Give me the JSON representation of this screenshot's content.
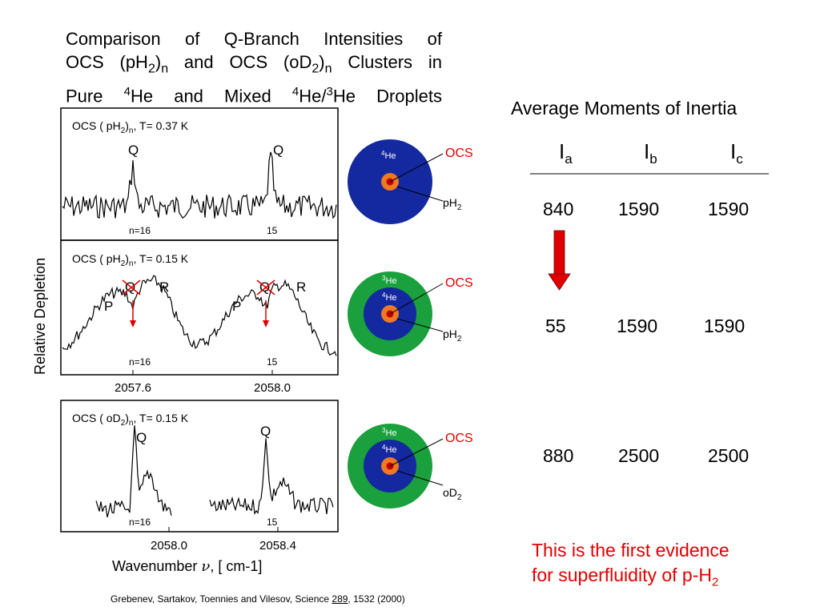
{
  "slide": {
    "title_lines": [
      "Comparison of Q-Branch Intensities of",
      "OCS (pH₂)ₙ and OCS (oD₂)ₙ Clusters in",
      "Pure ⁴He and Mixed ⁴He/³He Droplets"
    ],
    "y_axis_label": "Relative Depletion",
    "panels": [
      {
        "label": "OCS ( pH₂)ₙ, T= 0.37 K",
        "peaks": [
          "Q",
          "Q"
        ],
        "n_labels": [
          "n=16",
          "15"
        ]
      },
      {
        "label": "OCS ( pH₂)ₙ, T= 0.15 K",
        "peaks": [
          "P",
          "Q",
          "R",
          "P",
          "Q",
          "R"
        ],
        "n_labels": [
          "n=16",
          "15"
        ],
        "ticks": [
          "2057.6",
          "2058.0"
        ]
      },
      {
        "label": "OCS ( oD₂)ₙ, T= 0.15 K",
        "peaks": [
          "Q",
          "Q"
        ],
        "n_labels": [
          "n=16",
          "15"
        ],
        "ticks": [
          "2058.0",
          "2058.4"
        ]
      }
    ],
    "x_axis_label": "Wavenumber ν, [ cm-1]",
    "droplets": [
      {
        "outer": "⁴He",
        "inner": "",
        "ocs": "OCS",
        "molecule": "pH₂"
      },
      {
        "outer": "³He",
        "inner": "⁴He",
        "ocs": "OCS",
        "molecule": "pH₂"
      },
      {
        "outer": "³He",
        "inner": "⁴He",
        "ocs": "OCS",
        "molecule": "oD₂"
      }
    ],
    "table": {
      "title": "Average Moments of Inertia",
      "headers": [
        "Iₐ",
        "I_b",
        "I_c"
      ],
      "rows": [
        [
          "840",
          "1590",
          "1590"
        ],
        [
          "55",
          "1590",
          "1590"
        ],
        [
          "880",
          "2500",
          "2500"
        ]
      ]
    },
    "note_lines": [
      "This is the first evidence",
      "for superfluidity of p-H₂"
    ],
    "citation": {
      "text": "Grebenev, Sartakov, Toennies and Vilesov, Science ",
      "volume": "289",
      "rest": ", 1532 (2000)"
    },
    "colors": {
      "accent_red": "#e00000",
      "he4_blue": "#1428a0",
      "he3_green": "#1aa03c",
      "ocs_orange": "#f07820"
    }
  }
}
